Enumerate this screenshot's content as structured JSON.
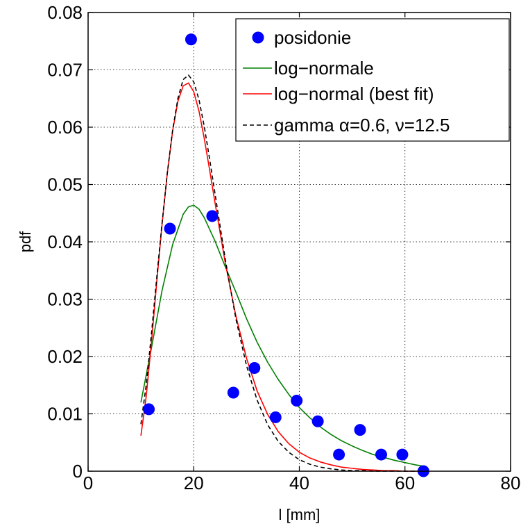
{
  "chart_data": {
    "type": "line",
    "xlabel": "l [mm]",
    "ylabel": "pdf",
    "xlim": [
      0,
      80
    ],
    "ylim": [
      0,
      0.08
    ],
    "x_ticks": [
      "0",
      "20",
      "40",
      "60",
      "80"
    ],
    "y_ticks": [
      "0",
      "0.01",
      "0.02",
      "0.03",
      "0.04",
      "0.05",
      "0.06",
      "0.07",
      "0.08"
    ],
    "grid": true,
    "legend_position": "top-right",
    "series": [
      {
        "name": "posidonie",
        "style": "markers",
        "color": "#0000ff",
        "x": [
          11.5,
          15.5,
          19.5,
          23.5,
          27.5,
          31.5,
          35.5,
          39.5,
          43.5,
          47.5,
          51.5,
          55.5,
          59.5,
          63.5
        ],
        "y": [
          0.0108,
          0.0423,
          0.0753,
          0.0445,
          0.0137,
          0.018,
          0.0094,
          0.0123,
          0.0087,
          0.0029,
          0.0072,
          0.0029,
          0.0029,
          0.0
        ]
      },
      {
        "name": "log−normale",
        "style": "solid",
        "color": "#008000",
        "x": [
          10,
          12,
          14,
          16,
          18,
          19,
          20,
          21,
          22,
          24,
          26,
          28,
          30,
          32,
          34,
          36,
          38,
          40,
          42,
          44,
          46,
          48,
          50,
          52,
          54,
          56,
          58,
          60,
          62,
          64
        ],
        "y": [
          0.012,
          0.0215,
          0.0315,
          0.0395,
          0.0448,
          0.0461,
          0.0464,
          0.0457,
          0.0442,
          0.0402,
          0.0356,
          0.0312,
          0.0266,
          0.0225,
          0.019,
          0.016,
          0.0134,
          0.0111,
          0.0093,
          0.0077,
          0.0064,
          0.0053,
          0.0044,
          0.0036,
          0.0029,
          0.0024,
          0.0019,
          0.0015,
          0.0011,
          0.0008
        ]
      },
      {
        "name": "log−normal (best fit)",
        "style": "solid",
        "color": "#ff0000",
        "x": [
          10,
          11,
          12,
          13,
          14,
          15,
          16,
          17,
          18,
          19,
          20,
          21,
          22,
          23,
          24,
          26,
          28,
          30,
          32,
          34,
          36,
          38,
          40,
          42,
          44,
          46,
          48,
          50,
          52,
          54,
          56,
          58,
          60,
          64
        ],
        "y": [
          0.0062,
          0.013,
          0.0225,
          0.033,
          0.043,
          0.052,
          0.0593,
          0.0645,
          0.0672,
          0.0677,
          0.0662,
          0.0628,
          0.058,
          0.0526,
          0.047,
          0.0362,
          0.027,
          0.0197,
          0.014,
          0.0099,
          0.0069,
          0.0048,
          0.0033,
          0.0023,
          0.0016,
          0.0011,
          0.0007,
          0.0005,
          0.0003,
          0.0002,
          0.0001,
          0.0001,
          0.0,
          0.0
        ]
      },
      {
        "name": "gamma α=0.6, ν=12.5",
        "style": "dashed",
        "color": "#000000",
        "x": [
          10,
          11,
          12,
          13,
          14,
          15,
          16,
          17,
          18,
          19,
          20,
          21,
          22,
          23,
          24,
          26,
          28,
          30,
          32,
          34,
          36,
          38,
          40,
          42,
          44,
          46,
          48,
          50,
          52,
          54,
          56,
          60,
          64
        ],
        "y": [
          0.0082,
          0.015,
          0.024,
          0.0338,
          0.0432,
          0.052,
          0.0594,
          0.065,
          0.0683,
          0.0691,
          0.0679,
          0.0648,
          0.0601,
          0.0545,
          0.0486,
          0.0368,
          0.0265,
          0.0184,
          0.0124,
          0.0081,
          0.0052,
          0.0033,
          0.002,
          0.0012,
          0.0007,
          0.0004,
          0.0002,
          0.0001,
          0.0001,
          0.0,
          0.0,
          0.0,
          0.0
        ]
      }
    ]
  }
}
